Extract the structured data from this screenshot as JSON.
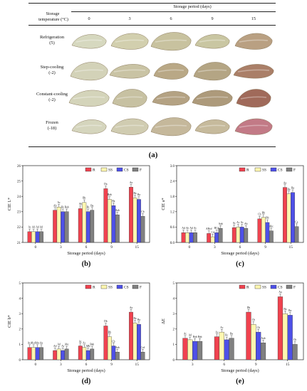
{
  "table": {
    "period_header": "Storage period (days)",
    "temp_header_1": "Storage",
    "temp_header_2": "temperature (°C)",
    "days": [
      "0",
      "3",
      "6",
      "9",
      "15"
    ],
    "rows": [
      {
        "name": "Refrigeration",
        "temp": "(5)"
      },
      {
        "name": "Step-cooling",
        "temp": "(-2)"
      },
      {
        "name": "Constant-cooling",
        "temp": "(-2)"
      },
      {
        "name": "Frozen",
        "temp": "(-18)"
      }
    ]
  },
  "captions": {
    "a": "(a)",
    "b": "(b)",
    "c": "(c)",
    "d": "(d)",
    "e": "(e)"
  },
  "legend": [
    "R",
    "SS",
    "CS",
    "F"
  ],
  "colors": {
    "R": "#f0424f",
    "SS": "#fff7b0",
    "CS": "#4e50e8",
    "F": "#808080"
  },
  "photo_tints": [
    [
      "#d6d8bf",
      "#d2cfae",
      "#c8c29f",
      "#c9c6a2",
      "#b9a082"
    ],
    [
      "#d3d2b8",
      "#c9c3a4",
      "#b9a886",
      "#b4a584",
      "#aa7f68"
    ],
    [
      "#d4d4ba",
      "#c7c1a2",
      "#b4a283",
      "#ad9a7b",
      "#a06a5a"
    ],
    [
      "#d5d5bd",
      "#d0ccb1",
      "#c5b89b",
      "#c6ba9c",
      "#c27a86"
    ]
  ],
  "chart_data": [
    {
      "type": "bar",
      "panel": "b",
      "ylabel": "CIE L*",
      "xlabel": "Storage period (days)",
      "categories": [
        "0",
        "3",
        "6",
        "9",
        "15"
      ],
      "ylim": [
        21,
        26
      ],
      "yticks": [
        "21",
        "22",
        "23",
        "24",
        "25",
        "26"
      ],
      "series": [
        {
          "name": "R",
          "values": [
            21.7,
            23.1,
            23.2,
            24.5,
            24.6
          ],
          "labels": [
            "Ac",
            "Ab",
            "Ab",
            "Da",
            "Aa"
          ]
        },
        {
          "name": "SS",
          "values": [
            21.7,
            23.3,
            23.6,
            23.8,
            23.9
          ],
          "labels": [
            "Ad",
            "Ac",
            "Bb",
            "Bab",
            "Ba"
          ]
        },
        {
          "name": "CS",
          "values": [
            21.7,
            23.0,
            23.0,
            23.4,
            23.8
          ],
          "labels": [
            "Ad",
            "Bc",
            "Bc",
            "Ba",
            "Ba"
          ]
        },
        {
          "name": "F",
          "values": [
            21.7,
            23.0,
            23.1,
            22.8,
            22.7
          ],
          "labels": [
            "Ad",
            "Bab",
            "Ba",
            "Aab",
            "Cb"
          ]
        }
      ]
    },
    {
      "type": "bar",
      "panel": "c",
      "ylabel": "CIE a*",
      "xlabel": "Storage period (days)",
      "categories": [
        "0",
        "3",
        "6",
        "9",
        "15"
      ],
      "ylim": [
        0,
        3.0
      ],
      "yticks": [
        "0.0",
        "0.6",
        "1.2",
        "1.8",
        "2.4",
        "3.0"
      ],
      "series": [
        {
          "name": "R",
          "values": [
            0.38,
            0.35,
            0.58,
            0.92,
            2.15
          ],
          "labels": [
            "Ad",
            "ABcd",
            "Ac",
            "Cb",
            "Aa"
          ]
        },
        {
          "name": "SS",
          "values": [
            0.38,
            0.22,
            0.6,
            0.98,
            1.9
          ],
          "labels": [
            "Ae",
            "Cd",
            "Ac",
            "Bb",
            "Ba"
          ]
        },
        {
          "name": "CS",
          "values": [
            0.38,
            0.38,
            0.6,
            0.78,
            1.95
          ],
          "labels": [
            "Ad",
            "BCd",
            "Ac",
            "Bb",
            "Ba"
          ]
        },
        {
          "name": "F",
          "values": [
            0.38,
            0.55,
            0.55,
            0.45,
            0.62
          ],
          "labels": [
            "Ac",
            "Aab",
            "Ab",
            "Abc",
            "Ca"
          ]
        }
      ]
    },
    {
      "type": "bar",
      "panel": "d",
      "ylabel": "CIE b*",
      "xlabel": "Storage period (days)",
      "categories": [
        "0",
        "3",
        "6",
        "9",
        "15"
      ],
      "ylim": [
        0,
        5
      ],
      "yticks": [
        "0",
        "1",
        "2",
        "3",
        "4",
        "5"
      ],
      "series": [
        {
          "name": "R",
          "values": [
            0.8,
            0.6,
            0.9,
            2.2,
            3.1
          ],
          "labels": [
            "Acd",
            "Ad",
            "Ac",
            "Db",
            "Aa"
          ]
        },
        {
          "name": "SS",
          "values": [
            0.8,
            0.7,
            0.8,
            1.5,
            2.4
          ],
          "labels": [
            "Acd",
            "Ad",
            "Ac",
            "Bb",
            "Ba"
          ]
        },
        {
          "name": "CS",
          "values": [
            0.8,
            0.6,
            0.6,
            0.9,
            2.3
          ],
          "labels": [
            "Abc",
            "Ar",
            "ABc",
            "Cb",
            "Ba"
          ]
        },
        {
          "name": "F",
          "values": [
            0.8,
            0.7,
            0.7,
            0.5,
            0.5
          ],
          "labels": [
            "Aa",
            "Abc",
            "Bab",
            "Aab",
            "Ccd"
          ]
        }
      ]
    },
    {
      "type": "bar",
      "panel": "e",
      "ylabel": "ΔE",
      "xlabel": "Storage period (days)",
      "categories": [
        "3",
        "6",
        "9",
        "15"
      ],
      "ylim": [
        0,
        5
      ],
      "yticks": [
        "0",
        "1",
        "2",
        "3",
        "4",
        "5"
      ],
      "series": [
        {
          "name": "R",
          "values": [
            1.4,
            1.5,
            3.1,
            4.1
          ],
          "labels": [
            "Ac",
            "Ac",
            "Db",
            "Aa"
          ]
        },
        {
          "name": "SS",
          "values": [
            1.3,
            1.8,
            2.3,
            3.0
          ],
          "labels": [
            "Ad",
            "Ac",
            "Cb",
            "Ba"
          ]
        },
        {
          "name": "CS",
          "values": [
            1.2,
            1.3,
            1.8,
            2.9
          ],
          "labels": [
            "Bab",
            "Bc",
            "Cb",
            "Ba"
          ]
        },
        {
          "name": "F",
          "values": [
            1.2,
            1.4,
            1.1,
            1.0
          ],
          "labels": [
            "Bab",
            "Ba",
            "Aab",
            "Cb"
          ]
        }
      ]
    }
  ]
}
